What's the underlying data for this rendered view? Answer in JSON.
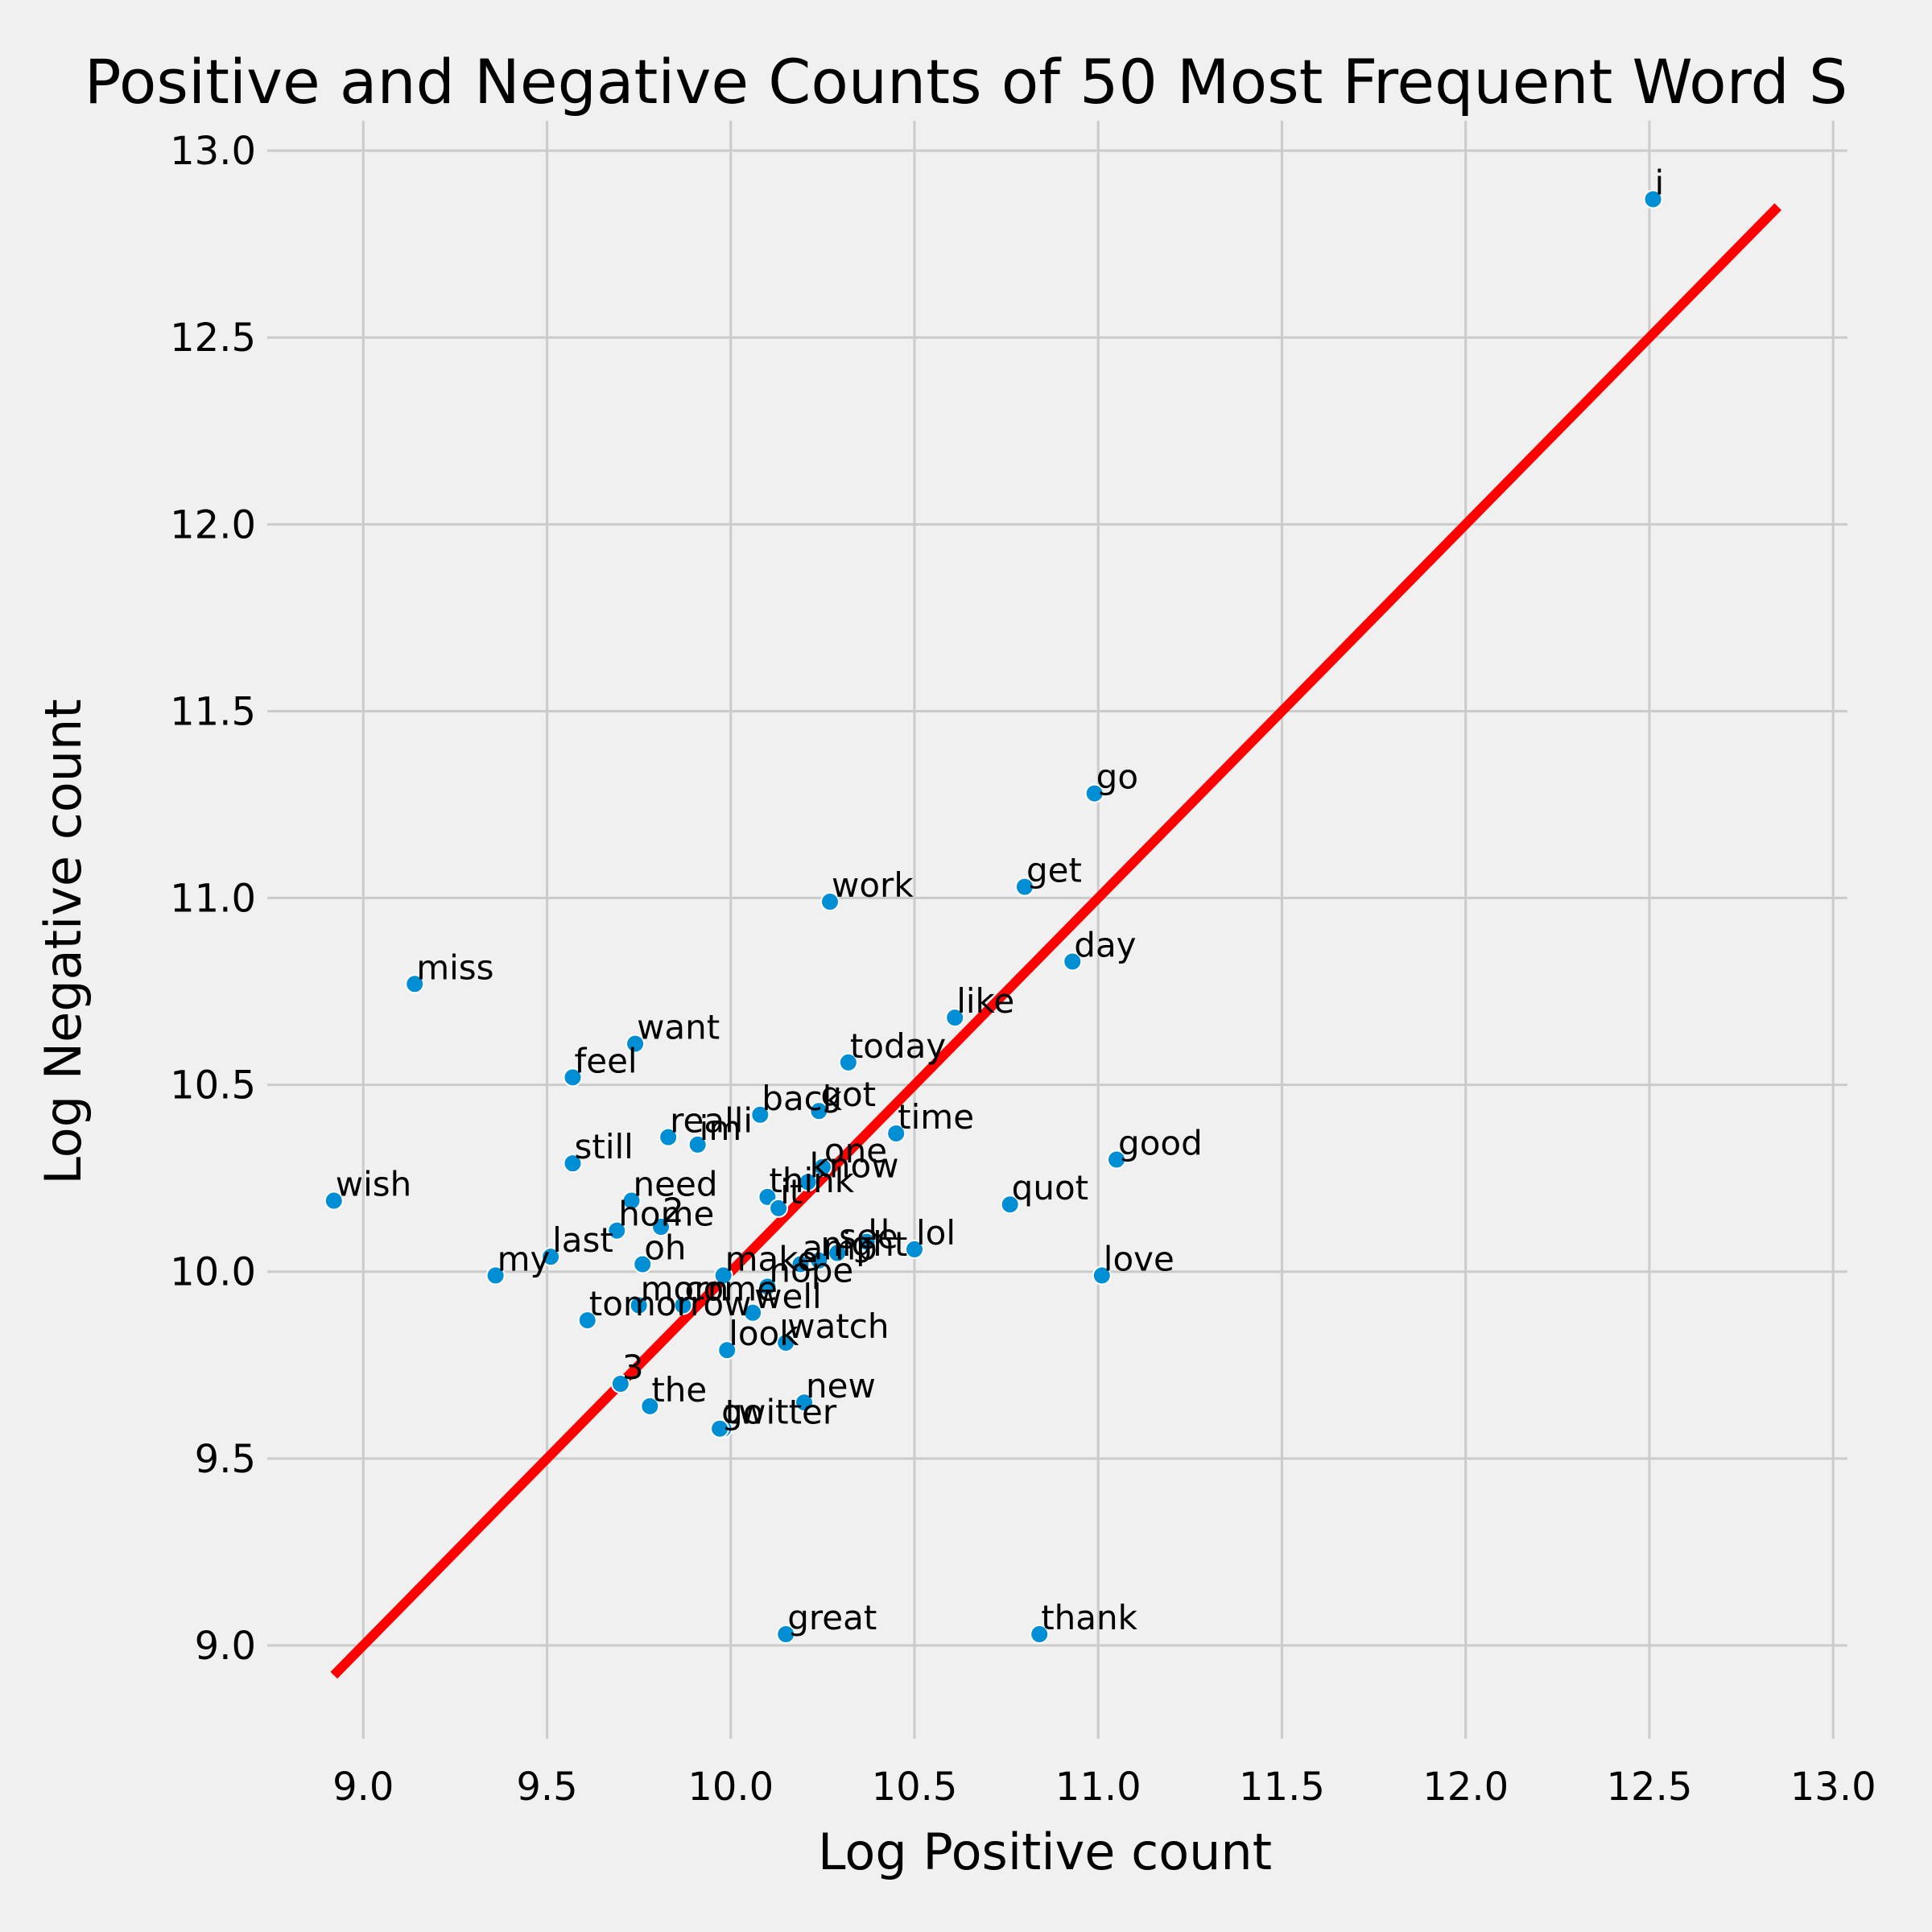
{
  "chart_data": {
    "type": "scatter",
    "title": "Positive and Negative Counts of 50 Most Frequent Word S",
    "xlabel": "Log Positive count",
    "ylabel": "Log Negative count",
    "xlim": [
      8.8,
      13.05
    ],
    "ylim": [
      8.75,
      13.08
    ],
    "xticks": [
      "9.0",
      "9.5",
      "10.0",
      "10.5",
      "11.0",
      "11.5",
      "12.0",
      "12.5",
      "13.0"
    ],
    "yticks": [
      "9.0",
      "9.5",
      "10.0",
      "10.5",
      "11.0",
      "11.5",
      "12.0",
      "12.5",
      "13.0"
    ],
    "grid": true,
    "colors": {
      "points": "#008fd5",
      "line": "#ff0000",
      "background": "#f0f0f0",
      "grid": "#cbcbcb"
    },
    "reference_line": {
      "x": [
        8.92,
        12.85
      ],
      "y": [
        8.92,
        12.85
      ]
    },
    "points": [
      {
        "label": "i",
        "x": 12.51,
        "y": 12.87
      },
      {
        "label": "go",
        "x": 10.99,
        "y": 11.28
      },
      {
        "label": "get",
        "x": 10.8,
        "y": 11.03
      },
      {
        "label": "work",
        "x": 10.27,
        "y": 10.99
      },
      {
        "label": "day",
        "x": 10.93,
        "y": 10.83
      },
      {
        "label": "miss",
        "x": 9.14,
        "y": 10.77
      },
      {
        "label": "like",
        "x": 10.61,
        "y": 10.68
      },
      {
        "label": "want",
        "x": 9.74,
        "y": 10.61
      },
      {
        "label": "today",
        "x": 10.32,
        "y": 10.56
      },
      {
        "label": "feel",
        "x": 9.57,
        "y": 10.52
      },
      {
        "label": "back",
        "x": 10.08,
        "y": 10.42
      },
      {
        "label": "got",
        "x": 10.24,
        "y": 10.43
      },
      {
        "label": "time",
        "x": 10.45,
        "y": 10.37
      },
      {
        "label": "realli",
        "x": 9.83,
        "y": 10.36
      },
      {
        "label": "im",
        "x": 9.91,
        "y": 10.34
      },
      {
        "label": "good",
        "x": 11.05,
        "y": 10.3
      },
      {
        "label": "still",
        "x": 9.57,
        "y": 10.29
      },
      {
        "label": "one",
        "x": 10.25,
        "y": 10.28
      },
      {
        "label": "know",
        "x": 10.21,
        "y": 10.24
      },
      {
        "label": "think",
        "x": 10.1,
        "y": 10.2
      },
      {
        "label": "wish",
        "x": 8.92,
        "y": 10.19
      },
      {
        "label": "need",
        "x": 9.73,
        "y": 10.19
      },
      {
        "label": "quot",
        "x": 10.76,
        "y": 10.18
      },
      {
        "label": "it",
        "x": 10.13,
        "y": 10.17
      },
      {
        "label": "2",
        "x": 9.81,
        "y": 10.12
      },
      {
        "label": "home",
        "x": 9.69,
        "y": 10.11
      },
      {
        "label": "u",
        "x": 10.37,
        "y": 10.08
      },
      {
        "label": "see",
        "x": 10.29,
        "y": 10.05
      },
      {
        "label": "lol",
        "x": 10.5,
        "y": 10.06
      },
      {
        "label": "last",
        "x": 9.51,
        "y": 10.04
      },
      {
        "label": "oh",
        "x": 9.76,
        "y": 10.02
      },
      {
        "label": "amp",
        "x": 10.19,
        "y": 10.02
      },
      {
        "label": "night",
        "x": 10.24,
        "y": 10.03
      },
      {
        "label": "make",
        "x": 9.98,
        "y": 9.99
      },
      {
        "label": "my",
        "x": 9.36,
        "y": 9.99
      },
      {
        "label": "love",
        "x": 11.01,
        "y": 9.99
      },
      {
        "label": "hope",
        "x": 10.1,
        "y": 9.96
      },
      {
        "label": "morn",
        "x": 9.75,
        "y": 9.91
      },
      {
        "label": "come",
        "x": 9.87,
        "y": 9.91
      },
      {
        "label": "well",
        "x": 10.06,
        "y": 9.89
      },
      {
        "label": "tomorrow",
        "x": 9.61,
        "y": 9.87
      },
      {
        "label": "watch",
        "x": 10.15,
        "y": 9.81
      },
      {
        "label": "look",
        "x": 9.99,
        "y": 9.79
      },
      {
        "label": "3",
        "x": 9.7,
        "y": 9.7
      },
      {
        "label": "new",
        "x": 10.2,
        "y": 9.65
      },
      {
        "label": "the",
        "x": 9.78,
        "y": 9.64
      },
      {
        "label": "twitter",
        "x": 9.98,
        "y": 9.58
      },
      {
        "label": "go",
        "x": 9.97,
        "y": 9.58
      },
      {
        "label": "great",
        "x": 10.15,
        "y": 9.03
      },
      {
        "label": "thank",
        "x": 10.84,
        "y": 9.03
      }
    ]
  }
}
